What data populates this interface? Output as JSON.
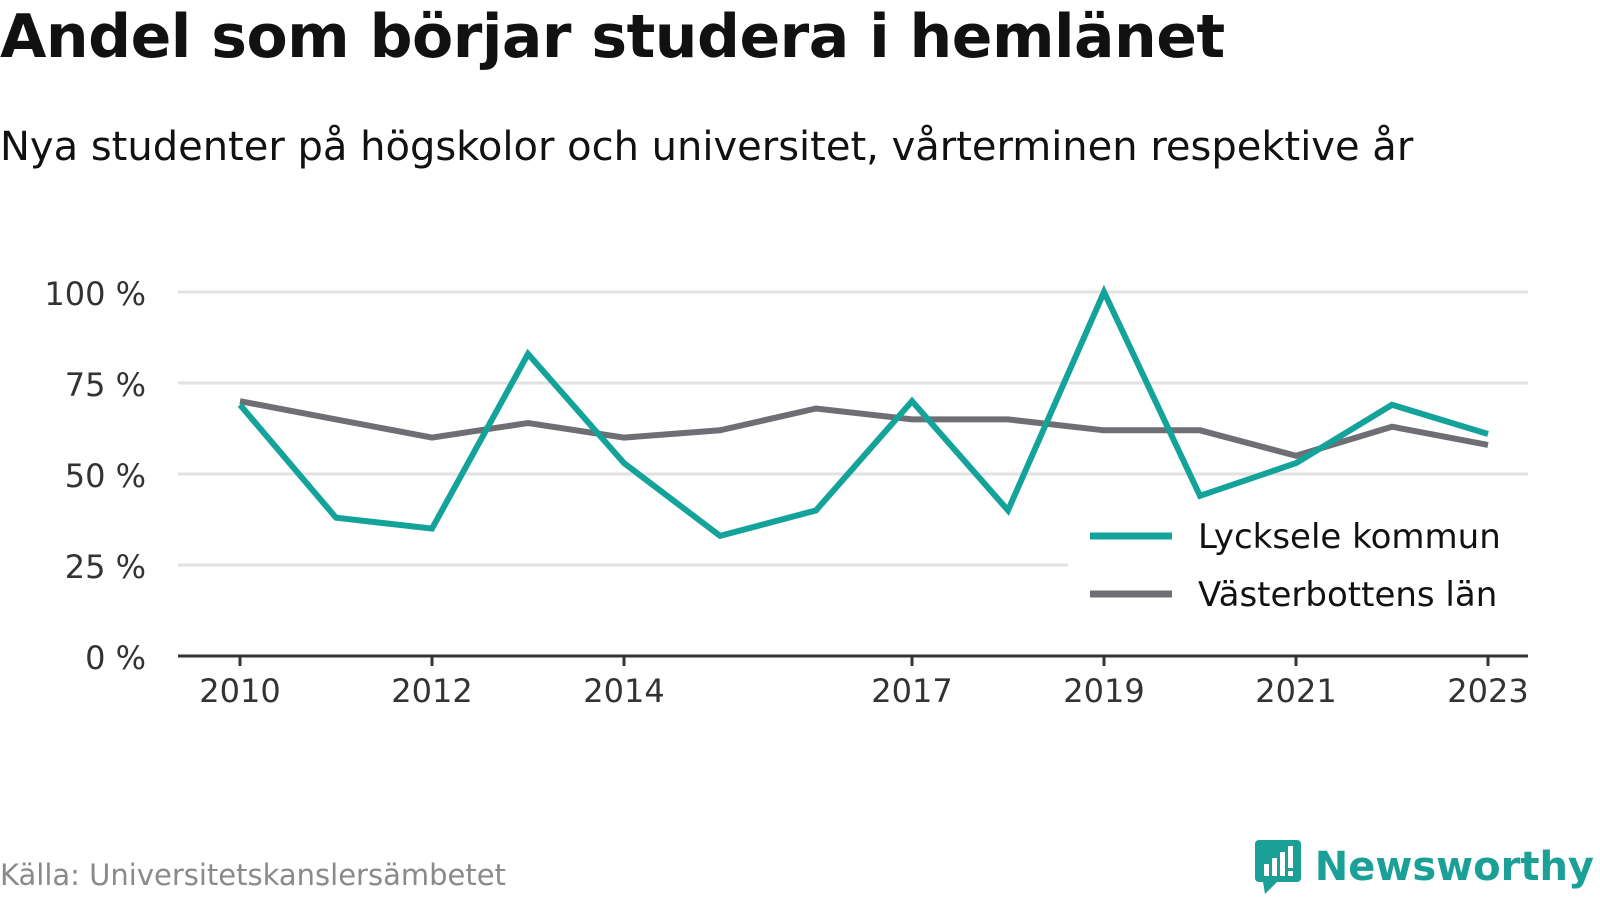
{
  "header": {
    "title": "Andel som börjar studera i hemlänet",
    "subtitle": "Nya studenter på högskolor och universitet, vårterminen respektive år"
  },
  "footer": {
    "source": "Källa: Universitetskanslersämbetet",
    "brand": "Newsworthy"
  },
  "colors": {
    "lycksele": "#13a39b",
    "vasterbotten": "#6f6e74",
    "grid": "#e2e2e2",
    "axis": "#333333",
    "brand": "#1aa096"
  },
  "chart_data": {
    "type": "line",
    "x": [
      2010,
      2011,
      2012,
      2013,
      2014,
      2015,
      2016,
      2017,
      2018,
      2019,
      2020,
      2021,
      2022,
      2023
    ],
    "xticks": [
      "2010",
      "2012",
      "2014",
      "2017",
      "2019",
      "2021",
      "2023"
    ],
    "yticks": [
      "0 %",
      "25 %",
      "50 %",
      "75 %",
      "100 %"
    ],
    "ylim": [
      0,
      100
    ],
    "grid": true,
    "legend_position": "bottom-right",
    "series": [
      {
        "name": "Lycksele kommun",
        "values": [
          69,
          38,
          35,
          83,
          53,
          33,
          40,
          70,
          40,
          100,
          44,
          53,
          69,
          61
        ]
      },
      {
        "name": "Västerbottens län",
        "values": [
          70,
          65,
          60,
          64,
          60,
          62,
          68,
          65,
          65,
          62,
          62,
          55,
          63,
          58
        ]
      }
    ]
  }
}
